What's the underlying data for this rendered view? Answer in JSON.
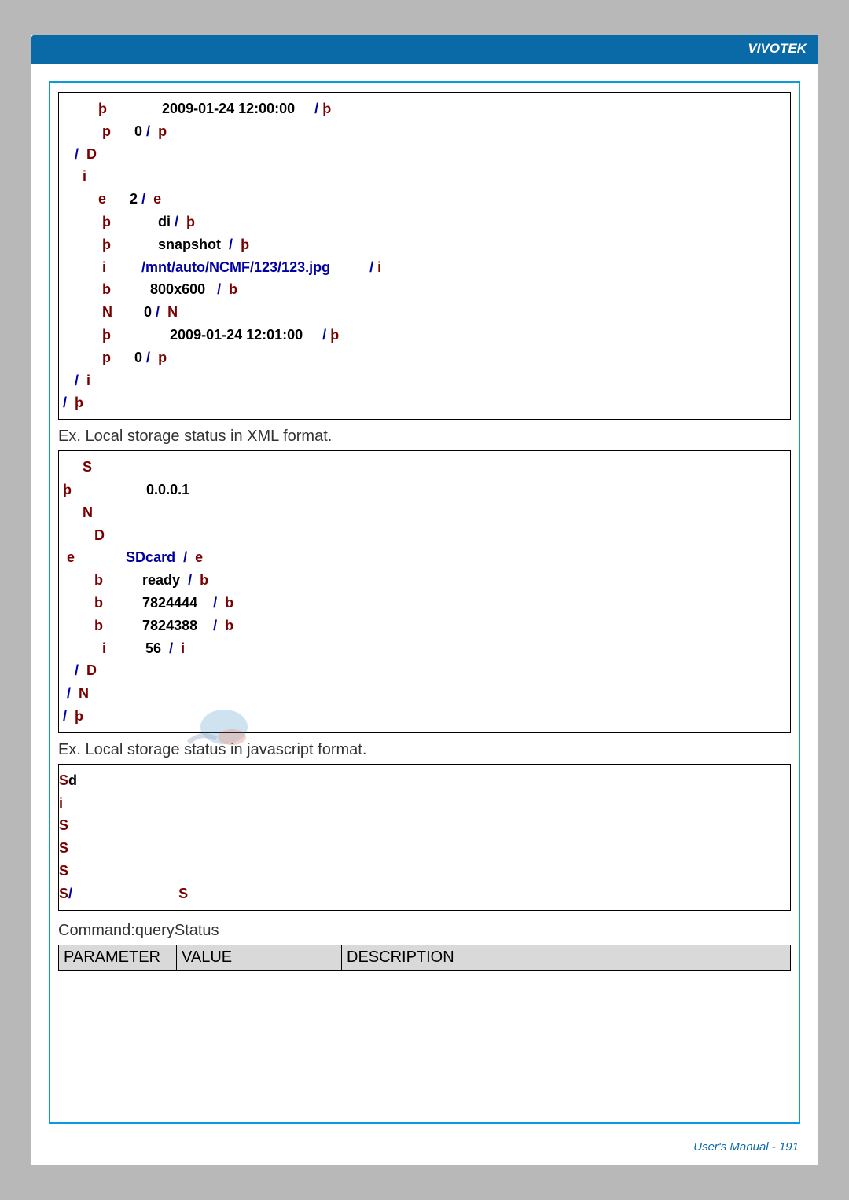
{
  "header": {
    "brand": "VIVOTEK"
  },
  "footer": {
    "text": "User's Manual - 191"
  },
  "box1": {
    "lines": [
      [
        [
          "          ",
          "tag"
        ],
        [
          "þ",
          "tag"
        ],
        [
          "              ",
          "val"
        ],
        [
          "2009-01-24 12:00:00",
          "val"
        ],
        [
          "     / ",
          "slash"
        ],
        [
          "þ",
          "tag"
        ]
      ],
      [
        [
          "           ",
          "tag"
        ],
        [
          "p",
          "tag"
        ],
        [
          "      ",
          "val"
        ],
        [
          "0",
          "val"
        ],
        [
          " /  ",
          "slash"
        ],
        [
          "p",
          "tag"
        ]
      ],
      [
        [
          "    /  ",
          "slash"
        ],
        [
          "D",
          "tag"
        ]
      ],
      [
        [
          "      ",
          "tag"
        ],
        [
          "i",
          "tag"
        ]
      ],
      [
        [
          "          ",
          "tag"
        ],
        [
          "e",
          "tag"
        ],
        [
          "      ",
          "val"
        ],
        [
          "2",
          "val"
        ],
        [
          " /  ",
          "slash"
        ],
        [
          "e",
          "tag"
        ]
      ],
      [
        [
          "           ",
          "tag"
        ],
        [
          "þ",
          "tag"
        ],
        [
          "            ",
          "val"
        ],
        [
          "di",
          "val"
        ],
        [
          " /  ",
          "slash"
        ],
        [
          "þ",
          "tag"
        ]
      ],
      [
        [
          "           ",
          "tag"
        ],
        [
          "þ",
          "tag"
        ],
        [
          "            ",
          "val"
        ],
        [
          "snapshot",
          "val"
        ],
        [
          "  /  ",
          "slash"
        ],
        [
          "þ",
          "tag"
        ]
      ],
      [
        [
          "           ",
          "tag"
        ],
        [
          "i",
          "tag"
        ],
        [
          "         ",
          "val"
        ],
        [
          "/mnt/auto/NCMF/123/123.jpg",
          "path"
        ],
        [
          "          / ",
          "slash"
        ],
        [
          "i",
          "tag"
        ]
      ],
      [
        [
          "           ",
          "tag"
        ],
        [
          "b",
          "tag"
        ],
        [
          "          ",
          "val"
        ],
        [
          "800x600",
          "val"
        ],
        [
          "   /  ",
          "slash"
        ],
        [
          "b",
          "tag"
        ]
      ],
      [
        [
          "           ",
          "tag"
        ],
        [
          "N",
          "tag"
        ],
        [
          "        ",
          "val"
        ],
        [
          "0",
          "val"
        ],
        [
          " /  ",
          "slash"
        ],
        [
          "N",
          "tag"
        ]
      ],
      [
        [
          "           ",
          "tag"
        ],
        [
          "þ",
          "tag"
        ],
        [
          "               ",
          "val"
        ],
        [
          "2009-01-24 12:01:00",
          "val"
        ],
        [
          "     / ",
          "slash"
        ],
        [
          "þ",
          "tag"
        ]
      ],
      [
        [
          "           ",
          "tag"
        ],
        [
          "p",
          "tag"
        ],
        [
          "      ",
          "val"
        ],
        [
          "0",
          "val"
        ],
        [
          " /  ",
          "slash"
        ],
        [
          "p",
          "tag"
        ]
      ],
      [
        [
          "    /  ",
          "slash"
        ],
        [
          "i",
          "tag"
        ]
      ],
      [
        [
          " /  ",
          "slash"
        ],
        [
          "þ",
          "tag"
        ]
      ]
    ]
  },
  "caption1": "Ex. Local storage status in XML format.",
  "box2": {
    "lines": [
      [
        [
          "      ",
          "tag"
        ],
        [
          "S",
          "tag"
        ]
      ],
      [
        [
          " ",
          "tag"
        ],
        [
          "þ",
          "tag"
        ],
        [
          "                   ",
          "val"
        ],
        [
          "0.0.0.1",
          "val"
        ]
      ],
      [
        [
          "      ",
          "tag"
        ],
        [
          "N",
          "tag"
        ]
      ],
      [
        [
          "         ",
          "tag"
        ],
        [
          "D",
          "tag"
        ]
      ],
      [
        [
          "  ",
          "tag"
        ],
        [
          "e",
          "tag"
        ],
        [
          "             ",
          "val"
        ],
        [
          "SDcard",
          "path"
        ],
        [
          "  /  ",
          "slash"
        ],
        [
          "e",
          "tag"
        ]
      ],
      [
        [
          "         ",
          "tag"
        ],
        [
          "b",
          "tag"
        ],
        [
          "          ",
          "val"
        ],
        [
          "ready",
          "val"
        ],
        [
          "  /  ",
          "slash"
        ],
        [
          "b",
          "tag"
        ]
      ],
      [
        [
          "         ",
          "tag"
        ],
        [
          "b",
          "tag"
        ],
        [
          "          ",
          "val"
        ],
        [
          "7824444",
          "val"
        ],
        [
          "    /  ",
          "slash"
        ],
        [
          "b",
          "tag"
        ]
      ],
      [
        [
          "         ",
          "tag"
        ],
        [
          "b",
          "tag"
        ],
        [
          "          ",
          "val"
        ],
        [
          "7824388",
          "val"
        ],
        [
          "    /  ",
          "slash"
        ],
        [
          "b",
          "tag"
        ]
      ],
      [
        [
          "           ",
          "tag"
        ],
        [
          "i",
          "tag"
        ],
        [
          "          ",
          "val"
        ],
        [
          "56",
          "val"
        ],
        [
          "  /  ",
          "slash"
        ],
        [
          "i",
          "tag"
        ]
      ],
      [
        [
          "    /  ",
          "slash"
        ],
        [
          "D",
          "tag"
        ]
      ],
      [
        [
          "  /  ",
          "slash"
        ],
        [
          "N",
          "tag"
        ]
      ],
      [
        [
          " /  ",
          "slash"
        ],
        [
          "þ",
          "tag"
        ]
      ]
    ]
  },
  "caption2": "Ex. Local storage status in javascript format.",
  "box3": {
    "lines": [
      [
        [
          "S",
          "tag"
        ],
        [
          "d",
          "val"
        ]
      ],
      [
        [
          "i",
          "tag"
        ]
      ],
      [
        [
          "S",
          "tag"
        ]
      ],
      [
        [
          "S",
          "tag"
        ]
      ],
      [
        [
          "S",
          "tag"
        ]
      ],
      [
        [
          "S",
          "tag"
        ],
        [
          "/",
          "slash"
        ],
        [
          "                           ",
          "val"
        ],
        [
          "S",
          "tag"
        ]
      ]
    ]
  },
  "command": "Command:queryStatus",
  "table": {
    "headers": [
      "PARAMETER",
      "VALUE",
      "DESCRIPTION"
    ]
  }
}
